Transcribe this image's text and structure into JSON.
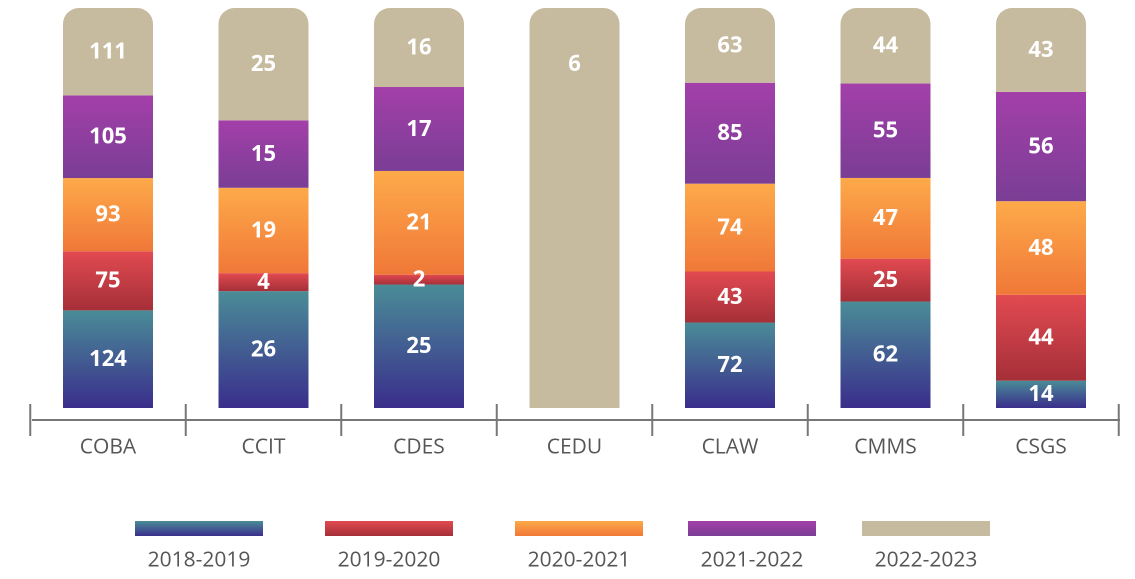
{
  "chart_data": {
    "type": "stacked_bar_100",
    "categories": [
      "COBA",
      "CCIT",
      "CDES",
      "CEDU",
      "CLAW",
      "CMMS",
      "CSGS"
    ],
    "series": [
      {
        "name": "2018-2019",
        "color": [
          "#3a2e8c",
          "#4a8c97"
        ],
        "values": [
          124,
          26,
          25,
          null,
          72,
          62,
          14
        ]
      },
      {
        "name": "2019-2020",
        "color": [
          "#a52f38",
          "#e24a51"
        ],
        "values": [
          75,
          4,
          2,
          null,
          43,
          25,
          44
        ]
      },
      {
        "name": "2020-2021",
        "color": [
          "#f07838",
          "#fdaa4a"
        ],
        "values": [
          93,
          19,
          21,
          null,
          74,
          47,
          48
        ]
      },
      {
        "name": "2021-2022",
        "color": [
          "#7a3e95",
          "#a33fa9"
        ],
        "values": [
          105,
          15,
          17,
          null,
          85,
          55,
          56
        ]
      },
      {
        "name": "2022-2023",
        "color": [
          "#c6bb9f",
          "#c6bb9f"
        ],
        "values": [
          111,
          25,
          16,
          6,
          63,
          44,
          43
        ]
      }
    ]
  }
}
